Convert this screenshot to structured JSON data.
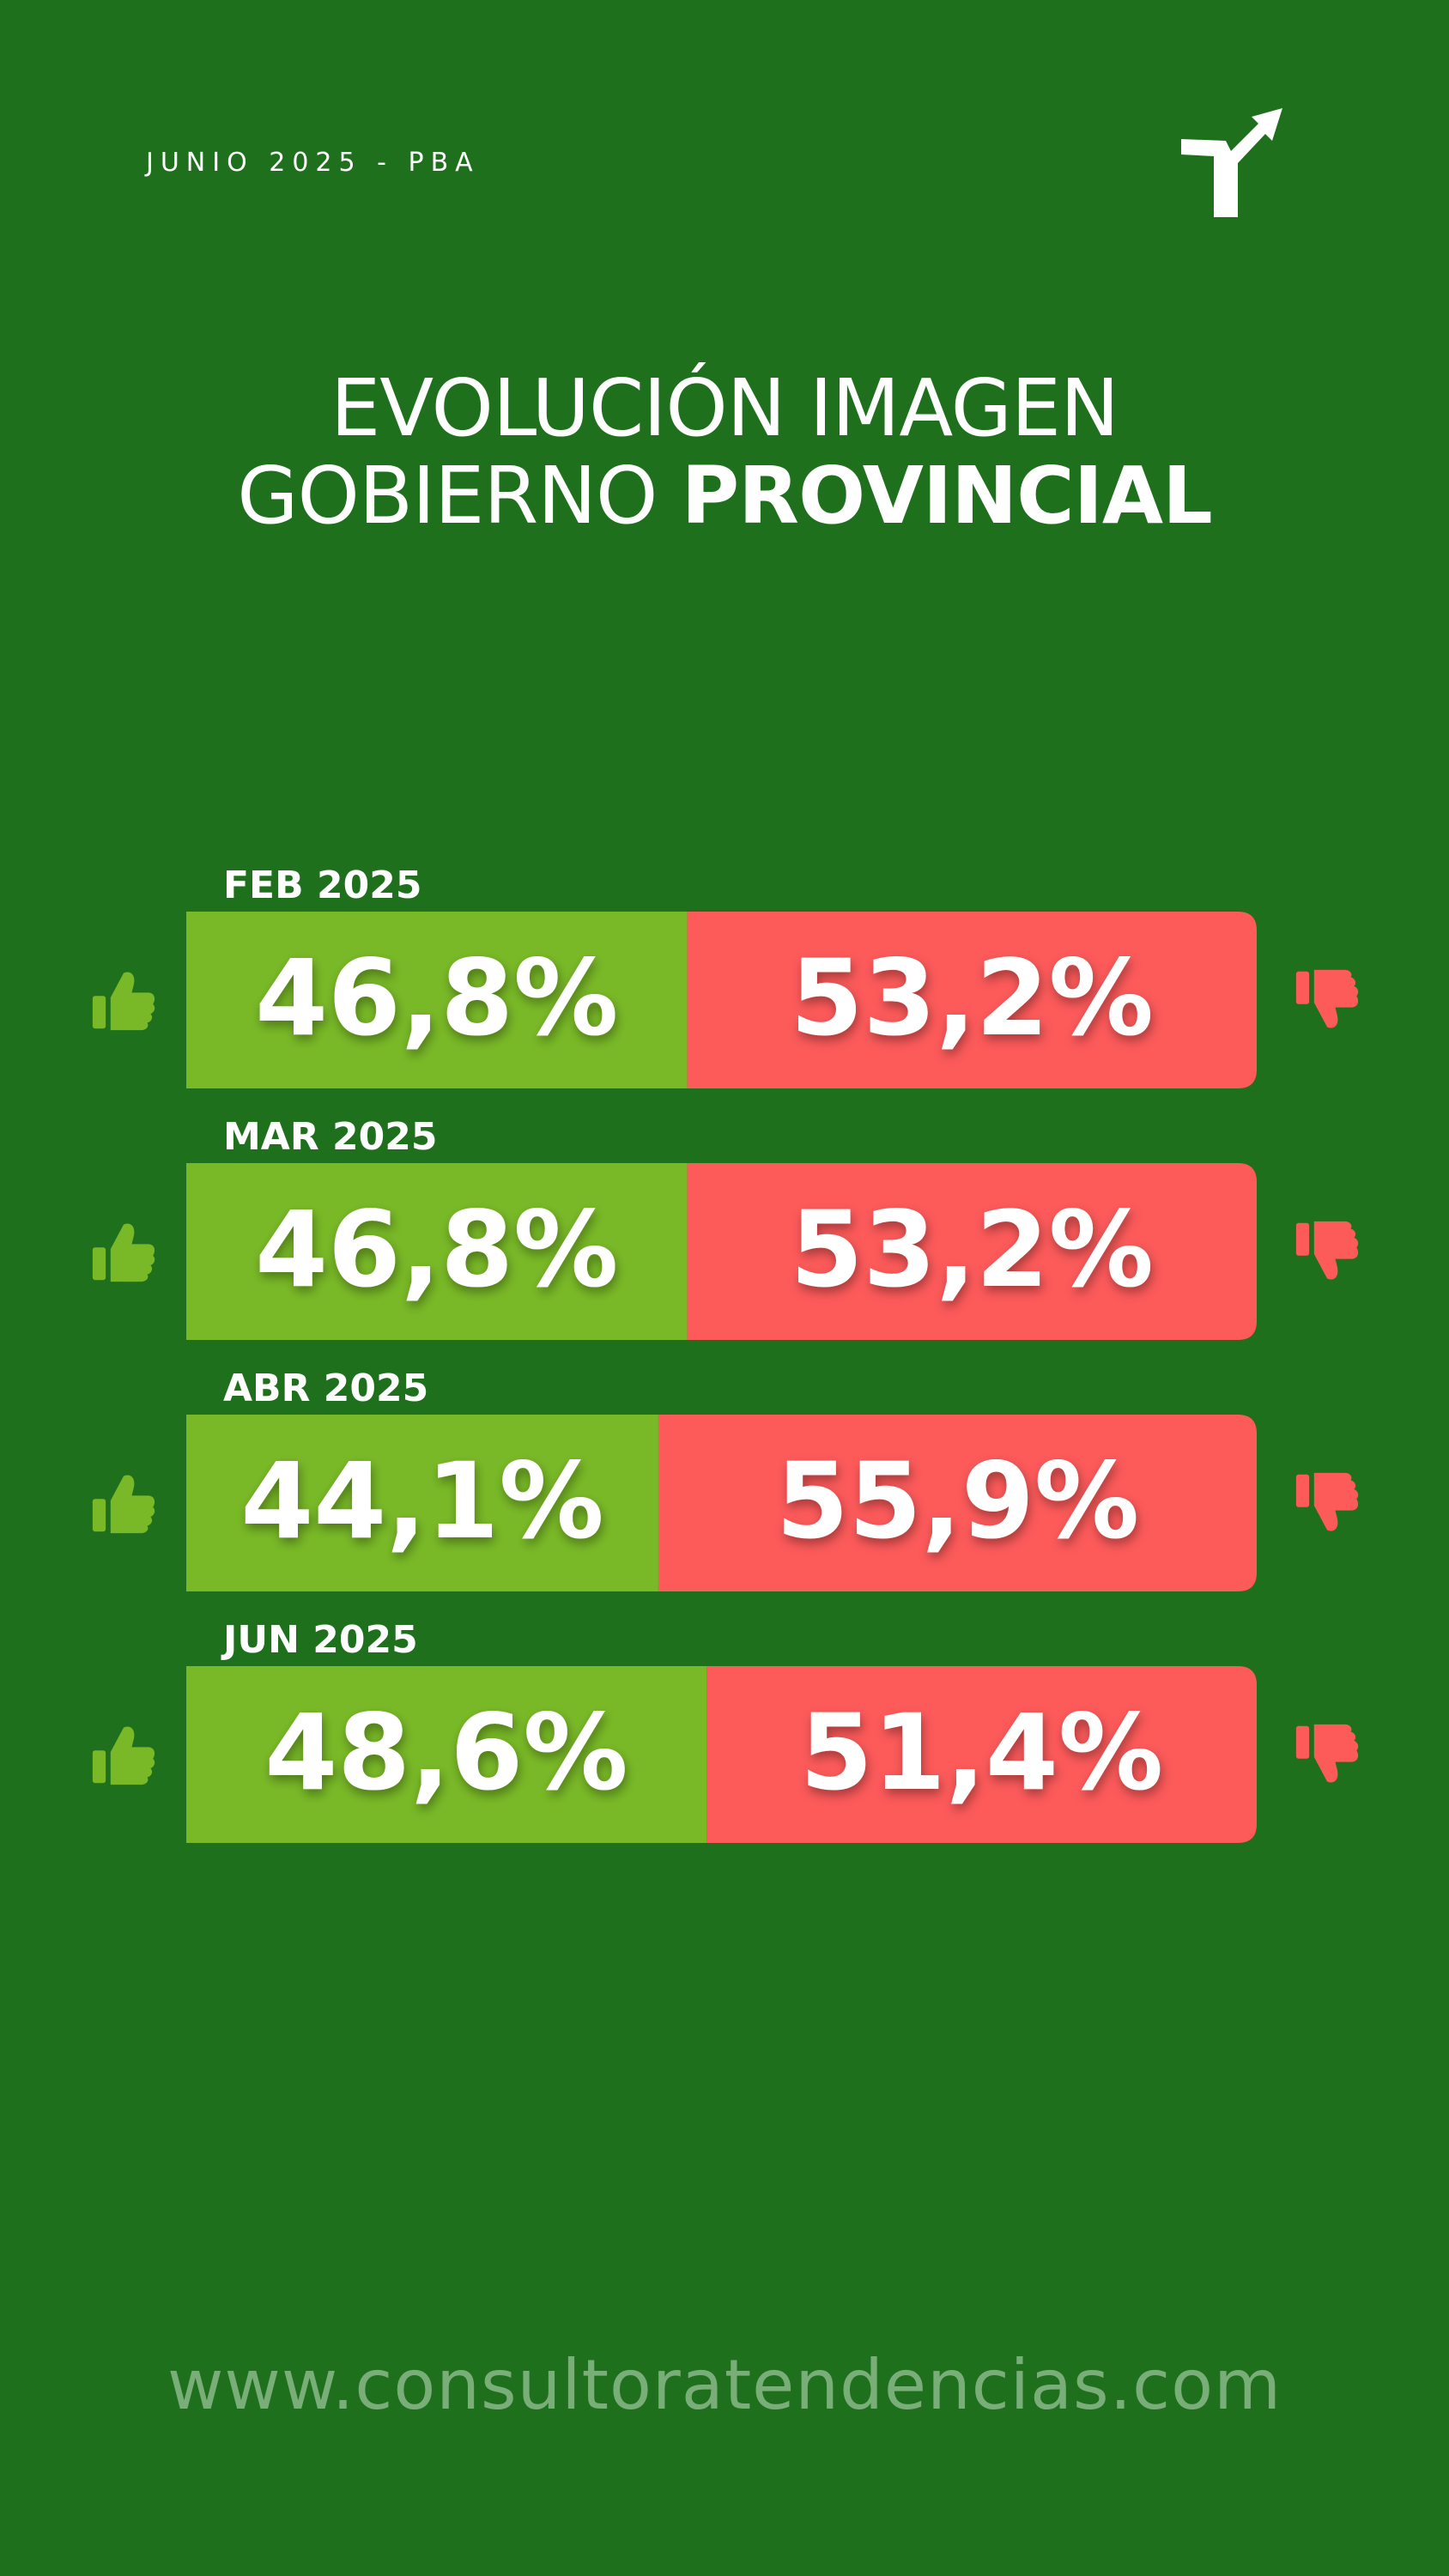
{
  "header": {
    "date_label": "JUNIO 2025 - PBA"
  },
  "logo": {
    "icon": "trend-arrow-logo-icon"
  },
  "title": {
    "line1": "EVOLUCIÓN IMAGEN",
    "line2_regular": "GOBIERNO",
    "line2_bold": "PROVINCIAL"
  },
  "colors": {
    "background": "#1e701d",
    "positive": "#79b927",
    "negative": "#fd5a5a",
    "footer_text": "#7aae79"
  },
  "chart_data": {
    "type": "bar",
    "orientation": "horizontal",
    "stacked": true,
    "categories": [
      "FEB 2025",
      "MAR 2025",
      "ABR 2025",
      "JUN 2025"
    ],
    "series": [
      {
        "values": [
          46.8,
          46.8,
          44.1,
          48.6
        ],
        "labels": [
          "46,8%",
          "46,8%",
          "44,1%",
          "48,6%"
        ],
        "color": "#79b927",
        "icon": "thumbs-up-icon"
      },
      {
        "values": [
          53.2,
          53.2,
          55.9,
          51.4
        ],
        "labels": [
          "53,2%",
          "53,2%",
          "55,9%",
          "51,4%"
        ],
        "color": "#fd5a5a",
        "icon": "thumbs-down-icon"
      }
    ],
    "xlim": [
      0,
      100
    ]
  },
  "footer": {
    "url": "www.consultoratendencias.com"
  }
}
